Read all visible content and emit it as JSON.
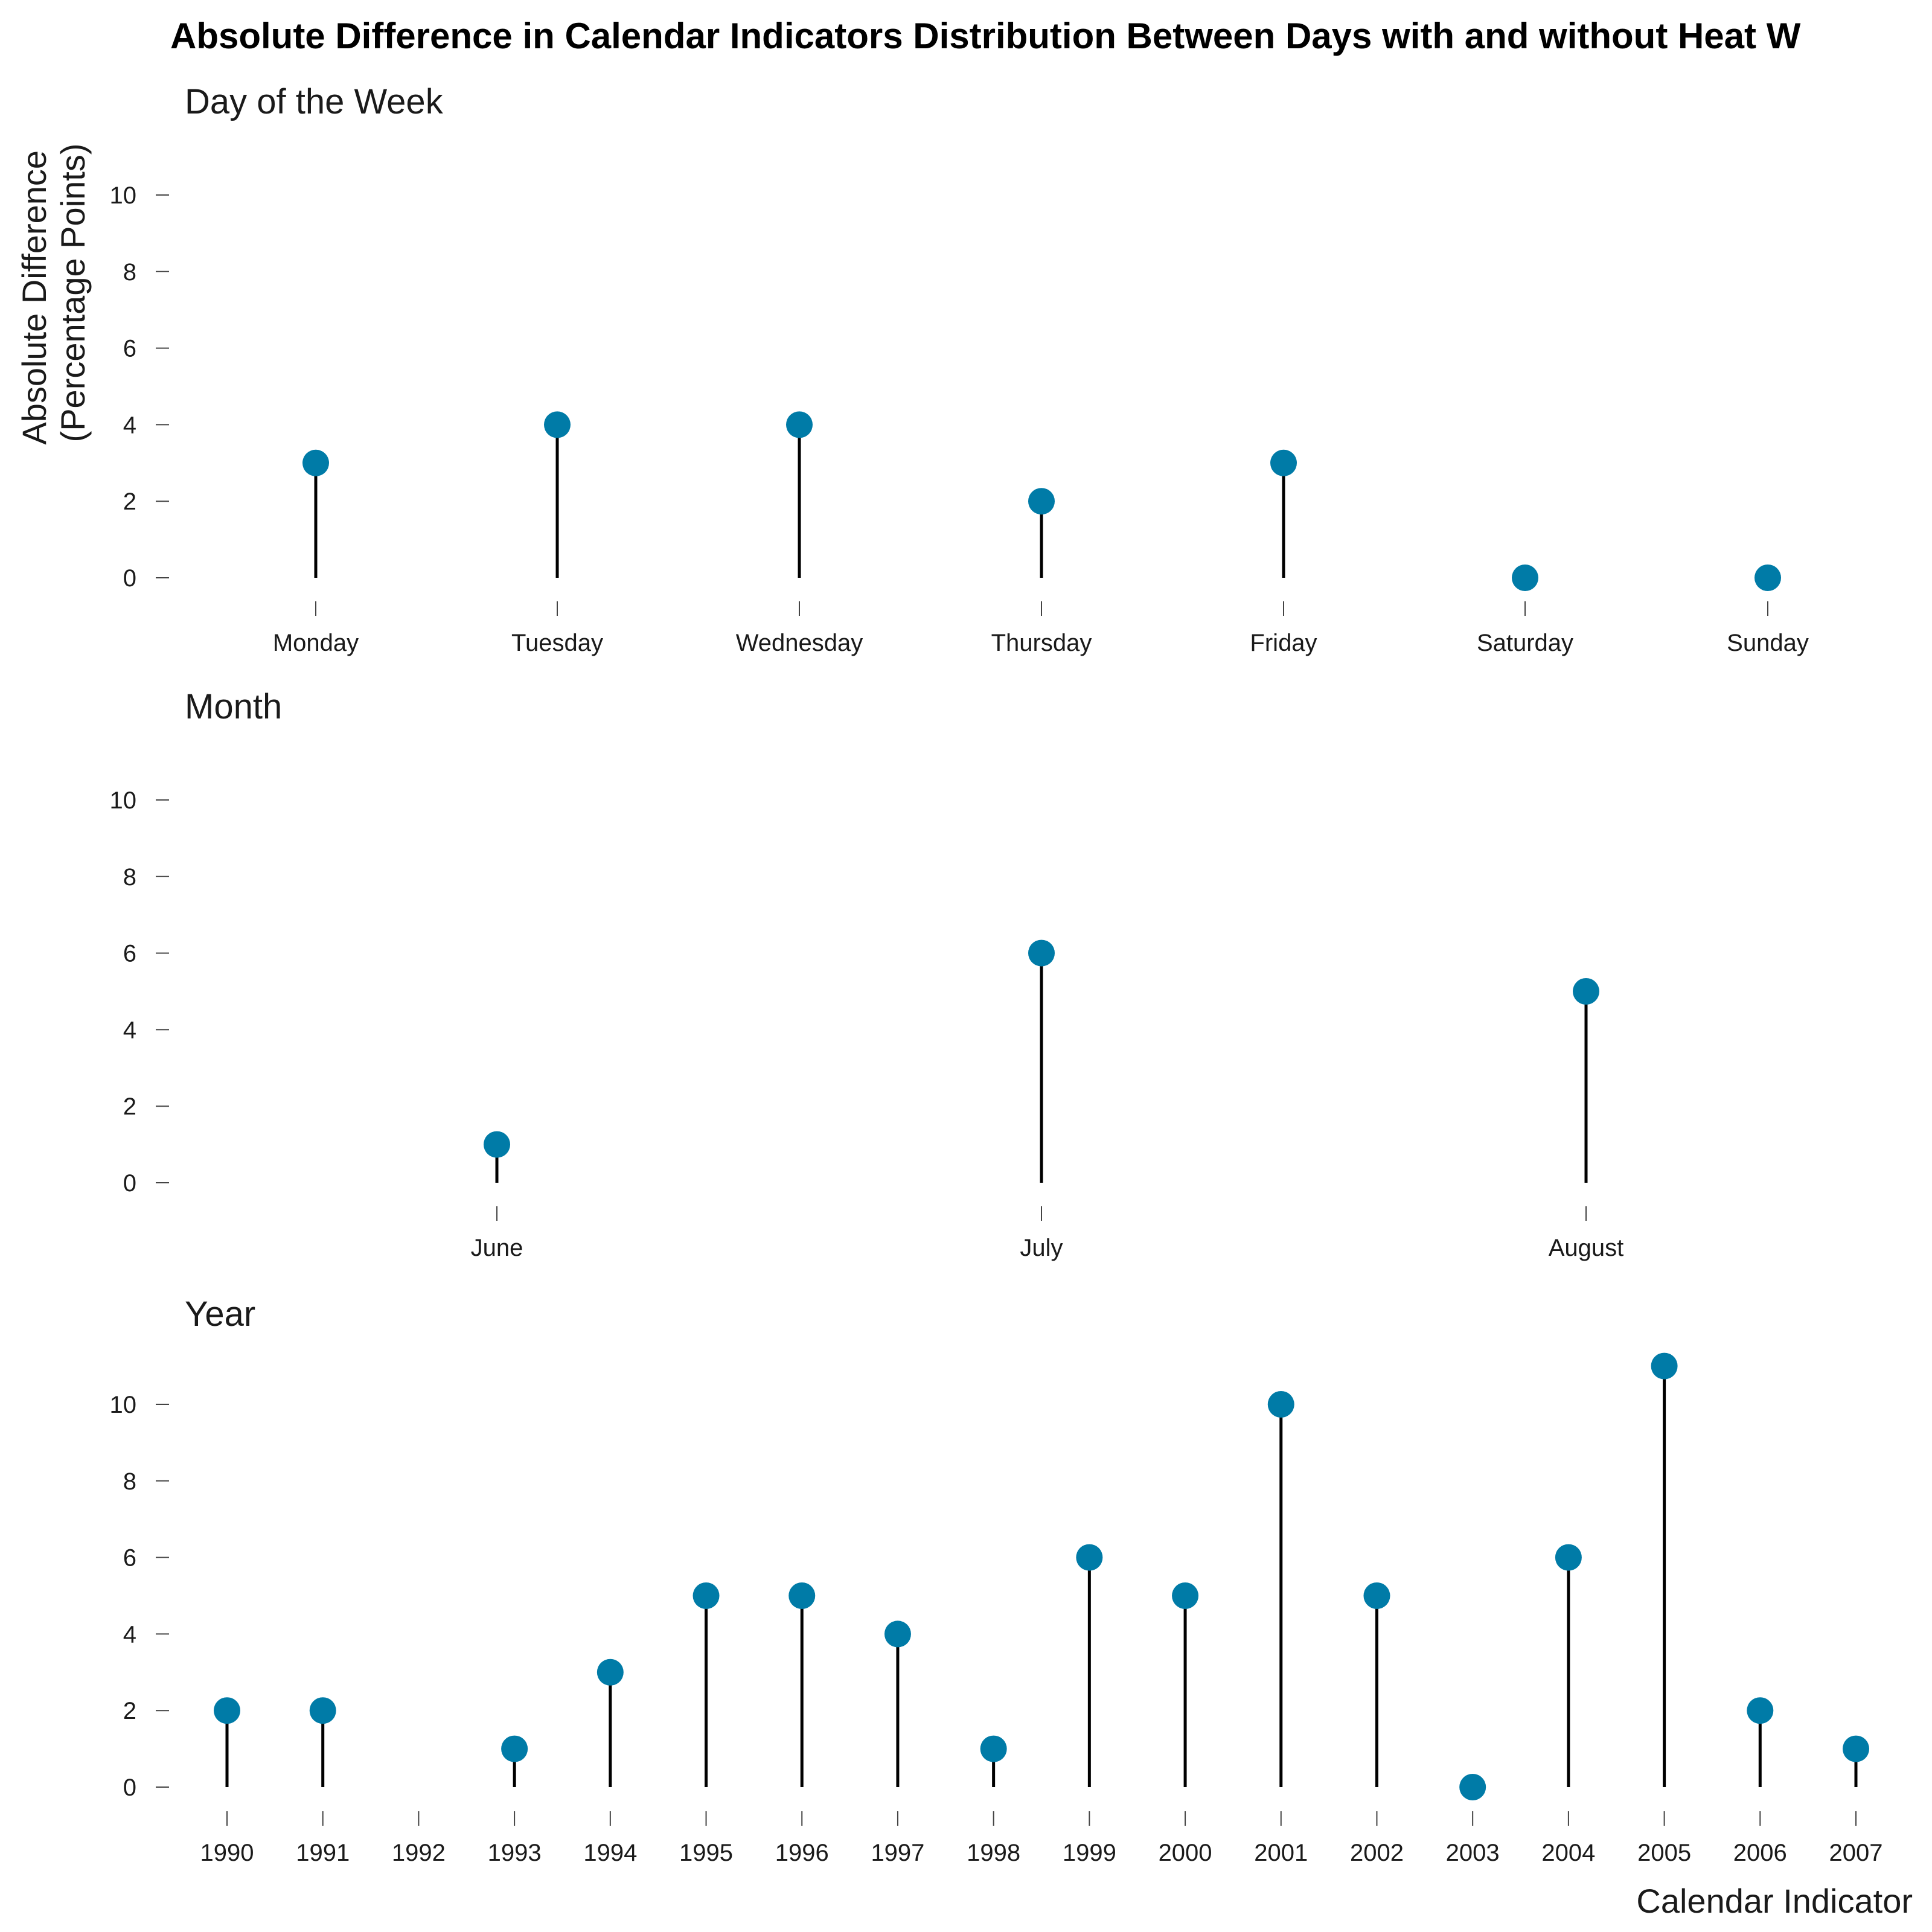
{
  "title": "Absolute Difference in Calendar Indicators Distribution Between Days with and without Heat W",
  "ylabel_line1": "Absolute Difference",
  "ylabel_line2": "(Percentage Points)",
  "xlabel": "Calendar Indicator",
  "colors": {
    "marker": "#007BA7",
    "stem": "#000000"
  },
  "chart_data": [
    {
      "type": "lollipop",
      "title": "Day of the Week",
      "categories": [
        "Monday",
        "Tuesday",
        "Wednesday",
        "Thursday",
        "Friday",
        "Saturday",
        "Sunday"
      ],
      "values": [
        3,
        4,
        4,
        2,
        3,
        0,
        0
      ],
      "yticks": [
        0,
        2,
        4,
        6,
        8,
        10
      ],
      "ylim": [
        0,
        10
      ],
      "grid": false
    },
    {
      "type": "lollipop",
      "title": "Month",
      "categories": [
        "June",
        "July",
        "August"
      ],
      "values": [
        1,
        6,
        5
      ],
      "yticks": [
        0,
        2,
        4,
        6,
        8,
        10
      ],
      "ylim": [
        0,
        10
      ],
      "grid": false
    },
    {
      "type": "lollipop",
      "title": "Year",
      "categories": [
        "1990",
        "1991",
        "1992",
        "1993",
        "1994",
        "1995",
        "1996",
        "1997",
        "1998",
        "1999",
        "2000",
        "2001",
        "2002",
        "2003",
        "2004",
        "2005",
        "2006",
        "2007"
      ],
      "values": [
        2,
        2,
        null,
        1,
        3,
        5,
        5,
        4,
        1,
        6,
        5,
        10,
        5,
        0,
        6,
        11,
        2,
        1
      ],
      "yticks": [
        0,
        2,
        4,
        6,
        8,
        10
      ],
      "ylim": [
        0,
        11
      ],
      "grid": false
    }
  ]
}
